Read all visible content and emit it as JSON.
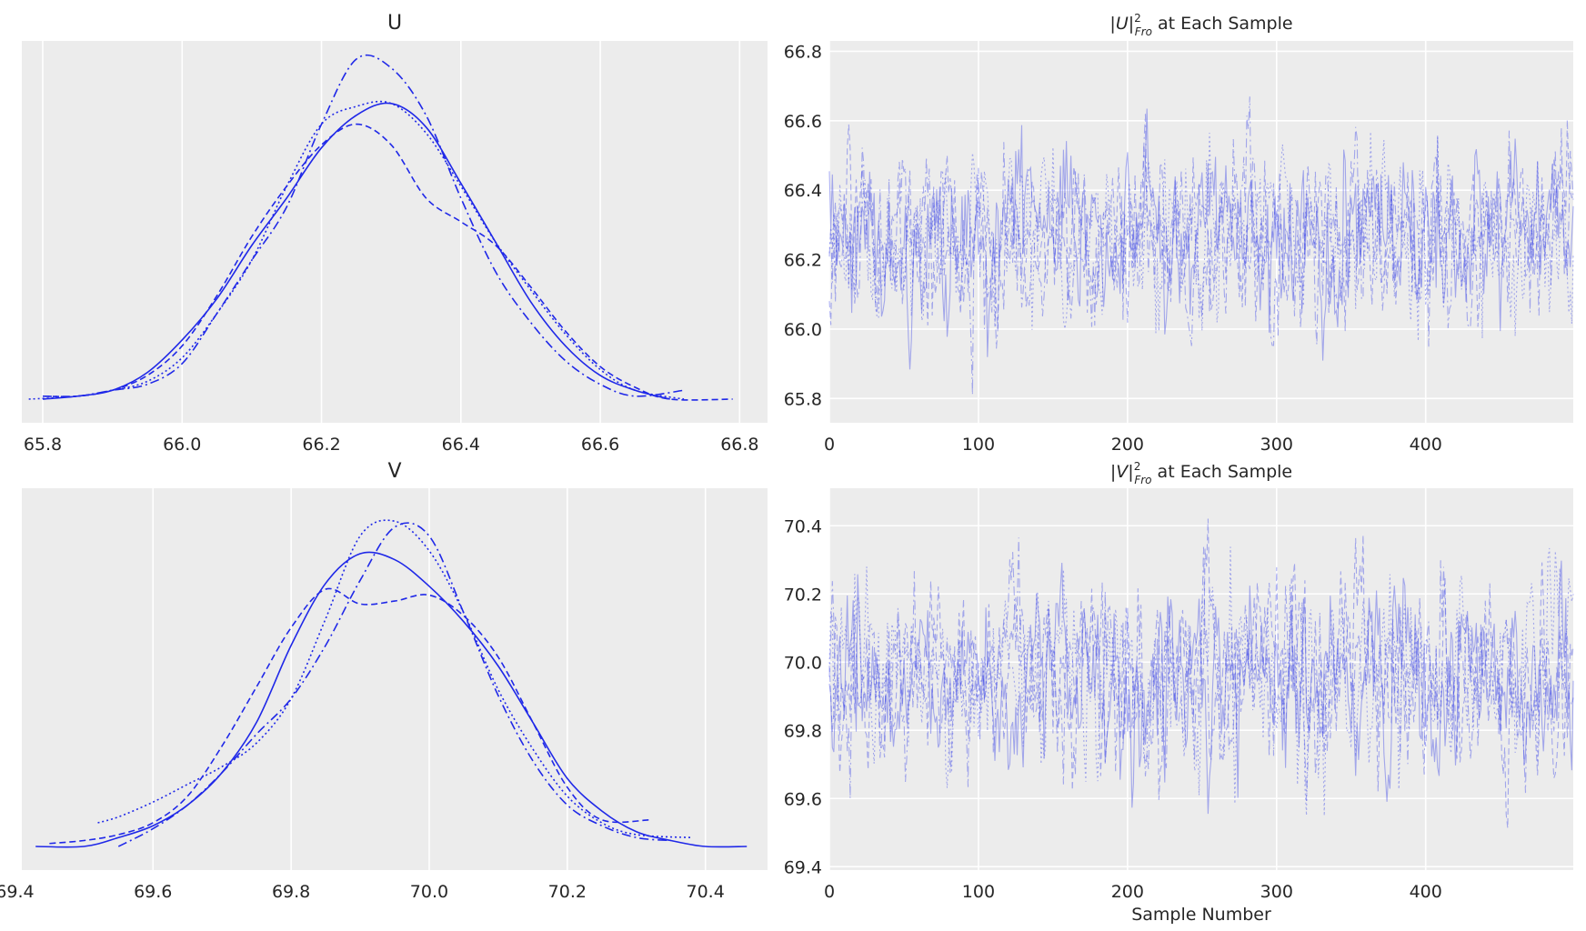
{
  "colors": {
    "line": "#1f28e8",
    "trace": "#3b45e6",
    "panel_bg": "#ececec",
    "grid": "#ffffff"
  },
  "chart_data": [
    {
      "type": "line",
      "panel": "kde-U",
      "title": "U",
      "xlim": [
        65.77,
        66.84
      ],
      "xticks": [
        65.8,
        66.0,
        66.2,
        66.4,
        66.6,
        66.8
      ],
      "xtick_labels": [
        "65.8",
        "66.0",
        "66.2",
        "66.4",
        "66.6",
        "66.8"
      ],
      "grid": true,
      "series": [
        {
          "style": "solid",
          "x": [
            65.8,
            65.85,
            65.9,
            65.95,
            66.0,
            66.05,
            66.1,
            66.15,
            66.2,
            66.25,
            66.3,
            66.35,
            66.4,
            66.45,
            66.5,
            66.55,
            66.6,
            66.65,
            66.7
          ],
          "y": [
            0.0,
            0.01,
            0.03,
            0.09,
            0.2,
            0.34,
            0.52,
            0.68,
            0.85,
            0.96,
            1.0,
            0.92,
            0.73,
            0.53,
            0.33,
            0.18,
            0.08,
            0.03,
            0.0
          ]
        },
        {
          "style": "dotted",
          "x": [
            65.78,
            65.85,
            65.9,
            65.95,
            66.0,
            66.05,
            66.1,
            66.15,
            66.2,
            66.25,
            66.3,
            66.35,
            66.4,
            66.45,
            66.5,
            66.55,
            66.6,
            66.65,
            66.72
          ],
          "y": [
            0.0,
            0.01,
            0.03,
            0.06,
            0.14,
            0.29,
            0.47,
            0.72,
            0.93,
            0.99,
            1.0,
            0.9,
            0.72,
            0.53,
            0.37,
            0.22,
            0.1,
            0.03,
            0.0
          ]
        },
        {
          "style": "dashed",
          "x": [
            65.8,
            65.85,
            65.9,
            65.95,
            66.0,
            66.05,
            66.1,
            66.15,
            66.2,
            66.25,
            66.3,
            66.35,
            66.4,
            66.45,
            66.5,
            66.55,
            66.6,
            66.65,
            66.7,
            66.79
          ],
          "y": [
            0.01,
            0.01,
            0.03,
            0.08,
            0.18,
            0.35,
            0.55,
            0.72,
            0.86,
            0.93,
            0.86,
            0.68,
            0.6,
            0.52,
            0.38,
            0.23,
            0.11,
            0.04,
            0.0,
            0.0
          ]
        },
        {
          "style": "dashdot",
          "x": [
            65.8,
            65.85,
            65.9,
            65.95,
            66.0,
            66.05,
            66.1,
            66.15,
            66.2,
            66.25,
            66.3,
            66.35,
            66.4,
            66.45,
            66.5,
            66.55,
            66.6,
            66.65,
            66.72
          ],
          "y": [
            0.01,
            0.01,
            0.03,
            0.05,
            0.12,
            0.29,
            0.47,
            0.65,
            0.93,
            1.15,
            1.12,
            0.96,
            0.68,
            0.43,
            0.26,
            0.13,
            0.05,
            0.01,
            0.03
          ]
        }
      ]
    },
    {
      "type": "line",
      "panel": "trace-U",
      "title": "|U|²Fro at Each Sample",
      "title_parts": {
        "pre": "|",
        "var": "U",
        "mid": "|",
        "sup": "2",
        "sub": "Fro",
        "post": " at Each Sample"
      },
      "xlim": [
        0,
        499
      ],
      "ylim": [
        65.73,
        66.83
      ],
      "xticks": [
        0,
        100,
        200,
        300,
        400
      ],
      "xtick_labels": [
        "0",
        "100",
        "200",
        "300",
        "400"
      ],
      "yticks": [
        65.8,
        66.0,
        66.2,
        66.4,
        66.6,
        66.8
      ],
      "ytick_labels": [
        "65.8",
        "66.0",
        "66.2",
        "66.4",
        "66.6",
        "66.8"
      ],
      "grid": true,
      "series_count": 4,
      "n_samples": 500,
      "center": 66.27,
      "spread": 0.12,
      "min": 65.78,
      "max": 66.79
    },
    {
      "type": "line",
      "panel": "kde-V",
      "title": "V",
      "xlim": [
        69.41,
        70.49
      ],
      "xticks": [
        69.4,
        69.6,
        69.8,
        70.0,
        70.2,
        70.4
      ],
      "xtick_labels": [
        "69.4",
        "69.6",
        "69.8",
        "70.0",
        "70.2",
        "70.4"
      ],
      "grid": true,
      "series": [
        {
          "style": "solid",
          "x": [
            69.43,
            69.5,
            69.55,
            69.6,
            69.65,
            69.7,
            69.75,
            69.8,
            69.85,
            69.9,
            69.95,
            70.0,
            70.05,
            70.1,
            70.15,
            70.2,
            70.25,
            70.3,
            70.35,
            70.4,
            70.46
          ],
          "y": [
            0.0,
            0.0,
            0.03,
            0.07,
            0.14,
            0.25,
            0.42,
            0.68,
            0.89,
            0.99,
            0.97,
            0.88,
            0.76,
            0.61,
            0.42,
            0.23,
            0.12,
            0.05,
            0.02,
            0.0,
            0.0
          ]
        },
        {
          "style": "dotted",
          "x": [
            69.52,
            69.55,
            69.6,
            69.65,
            69.7,
            69.75,
            69.8,
            69.85,
            69.9,
            69.95,
            70.0,
            70.05,
            70.1,
            70.15,
            70.2,
            70.25,
            70.3,
            70.38
          ],
          "y": [
            0.08,
            0.1,
            0.15,
            0.21,
            0.27,
            0.35,
            0.5,
            0.77,
            1.05,
            1.1,
            1.0,
            0.79,
            0.53,
            0.33,
            0.17,
            0.08,
            0.04,
            0.03
          ]
        },
        {
          "style": "dashed",
          "x": [
            69.45,
            69.5,
            69.55,
            69.6,
            69.65,
            69.7,
            69.75,
            69.8,
            69.85,
            69.9,
            69.95,
            70.0,
            70.05,
            70.1,
            70.15,
            70.2,
            70.25,
            70.32
          ],
          "y": [
            0.01,
            0.02,
            0.04,
            0.08,
            0.17,
            0.34,
            0.54,
            0.74,
            0.87,
            0.82,
            0.83,
            0.85,
            0.78,
            0.64,
            0.42,
            0.2,
            0.09,
            0.09
          ]
        },
        {
          "style": "dashdot",
          "x": [
            69.55,
            69.6,
            69.65,
            69.7,
            69.75,
            69.8,
            69.85,
            69.9,
            69.95,
            70.0,
            70.05,
            70.1,
            70.15,
            70.2,
            70.25,
            70.3,
            70.35
          ],
          "y": [
            0.0,
            0.06,
            0.14,
            0.25,
            0.38,
            0.5,
            0.68,
            0.9,
            1.08,
            1.05,
            0.79,
            0.51,
            0.29,
            0.14,
            0.07,
            0.03,
            0.02
          ]
        }
      ]
    },
    {
      "type": "line",
      "panel": "trace-V",
      "title": "|V|²Fro at Each Sample",
      "title_parts": {
        "pre": "|",
        "var": "V",
        "mid": "|",
        "sup": "2",
        "sub": "Fro",
        "post": " at Each Sample"
      },
      "xlabel": "Sample Number",
      "xlim": [
        0,
        499
      ],
      "ylim": [
        69.39,
        70.51
      ],
      "xticks": [
        0,
        100,
        200,
        300,
        400
      ],
      "xtick_labels": [
        "0",
        "100",
        "200",
        "300",
        "400"
      ],
      "yticks": [
        69.4,
        69.6,
        69.8,
        70.0,
        70.2,
        70.4
      ],
      "ytick_labels": [
        "69.4",
        "69.6",
        "69.8",
        "70.0",
        "70.2",
        "70.4"
      ],
      "grid": true,
      "series_count": 4,
      "n_samples": 500,
      "center": 69.96,
      "spread": 0.13,
      "min": 69.43,
      "max": 70.46
    }
  ]
}
